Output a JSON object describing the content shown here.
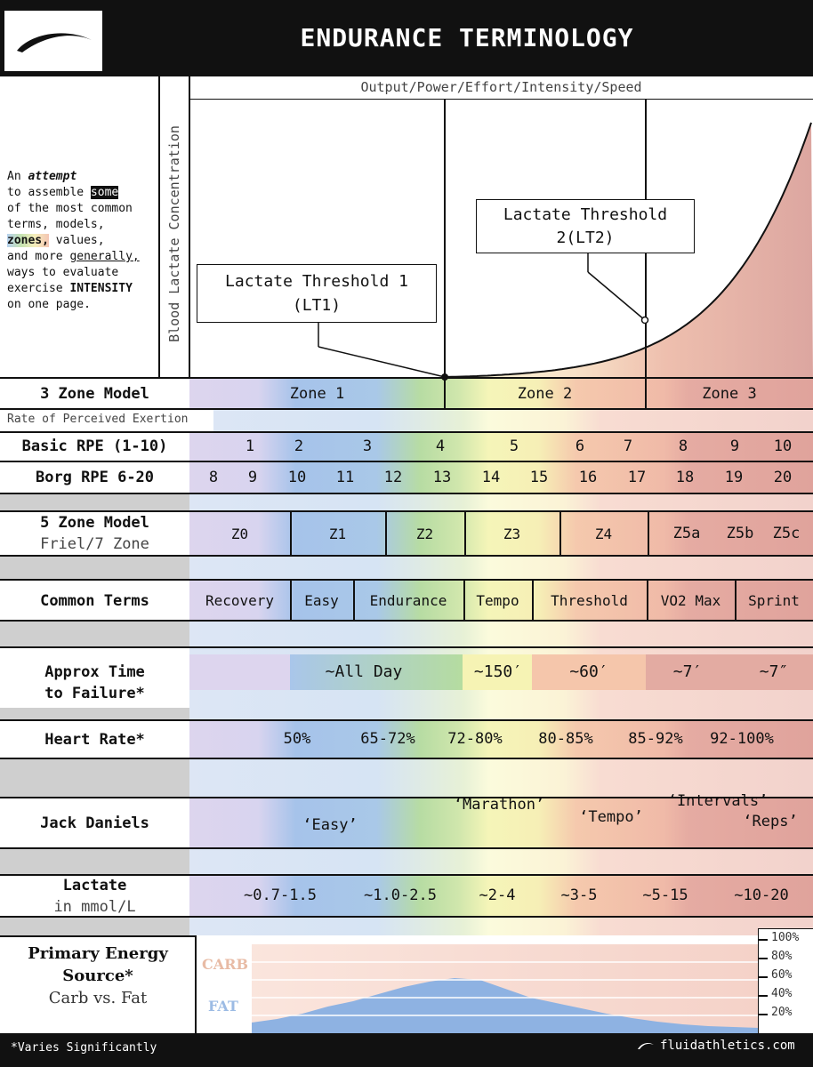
{
  "header": {
    "title": "ENDURANCE TERMINOLOGY",
    "logo_icon": "brush-stroke-logo"
  },
  "chart": {
    "xlabel": "Output/Power/Effort/Intensity/Speed",
    "ylabel": "Blood Lactate Concentration",
    "lt1_line1": "Lactate Threshold 1",
    "lt1_line2": "(LT1)",
    "lt2_line1": "Lactate Threshold",
    "lt2_line2": "2(LT2)"
  },
  "intro": {
    "p1": "An ",
    "attempt": "attempt",
    "p2": "to assemble ",
    "some": "some",
    "p3": "of the most common",
    "p4": "terms, models,",
    "zones": "zones,",
    "values": " values,",
    "p5": "and more ",
    "generally": "generally,",
    "p6": "ways to evaluate",
    "p7": "exercise ",
    "intensity": "INTENSITY",
    "p8": "on one page."
  },
  "three_zone": {
    "label": "3 Zone Model",
    "zones": [
      "Zone 1",
      "Zone 2",
      "Zone 3"
    ]
  },
  "rpe_header": "Rate of Perceived Exertion",
  "basic_rpe": {
    "label": "Basic RPE (1-10)",
    "values": [
      "1",
      "2",
      "3",
      "4",
      "5",
      "6",
      "7",
      "8",
      "9",
      "10"
    ]
  },
  "borg_rpe": {
    "label": "Borg RPE 6-20",
    "values": [
      "8",
      "9",
      "10",
      "11",
      "12",
      "13",
      "14",
      "15",
      "16",
      "17",
      "18",
      "19",
      "20"
    ]
  },
  "five_zone": {
    "label1": "5 Zone Model",
    "label2": "Friel/7 Zone",
    "zones": [
      "Z0",
      "Z1",
      "Z2",
      "Z3",
      "Z4",
      "Z5a",
      "Z5b",
      "Z5c"
    ]
  },
  "common_terms": {
    "label": "Common Terms",
    "terms": [
      "Recovery",
      "Easy",
      "Endurance",
      "Tempo",
      "Threshold",
      "VO2 Max",
      "Sprint"
    ]
  },
  "time_to_failure": {
    "label1": "Approx Time",
    "label2": "to Failure*",
    "values": [
      "~All Day",
      "~150′",
      "~60′",
      "~7′",
      "~7″"
    ]
  },
  "heart_rate": {
    "label": "Heart Rate*",
    "values": [
      "50%",
      "65-72%",
      "72-80%",
      "80-85%",
      "85-92%",
      "92-100%"
    ]
  },
  "jack_daniels": {
    "label": "Jack Daniels",
    "values": [
      "‘Easy’",
      "‘Marathon’",
      "‘Tempo’",
      "‘Intervals’",
      "‘Reps’"
    ]
  },
  "lactate": {
    "label1": "Lactate",
    "label2": "in mmol/L",
    "values": [
      "~0.7-1.5",
      "~1.0-2.5",
      "~2-4",
      "~3-5",
      "~5-15",
      "~10-20"
    ]
  },
  "energy": {
    "label1": "Primary Energy",
    "label2": "Source*",
    "label3": "Carb vs. Fat",
    "carb": "CARB",
    "fat": "FAT",
    "ticks": [
      "100%",
      "80%",
      "60%",
      "40%",
      "20%"
    ],
    "fat_share_shape": [
      0.12,
      0.16,
      0.22,
      0.3,
      0.36,
      0.44,
      0.52,
      0.58,
      0.62,
      0.6,
      0.5,
      0.4,
      0.34,
      0.28,
      0.22,
      0.17,
      0.13,
      0.1,
      0.08,
      0.07,
      0.06
    ]
  },
  "footer": {
    "note": "*Varies Significantly",
    "site": "fluidathletics.com"
  },
  "colors": {
    "zone_purple": "#d9d2ec",
    "zone_blue": "#a9c6ea",
    "zone_green": "#b5dca0",
    "zone_yellow": "#f4f3b4",
    "zone_salmon": "#f4c4a8",
    "zone_red": "#e3aaa0",
    "carb": "#f6d8cc",
    "fat": "#8eb2e2"
  }
}
